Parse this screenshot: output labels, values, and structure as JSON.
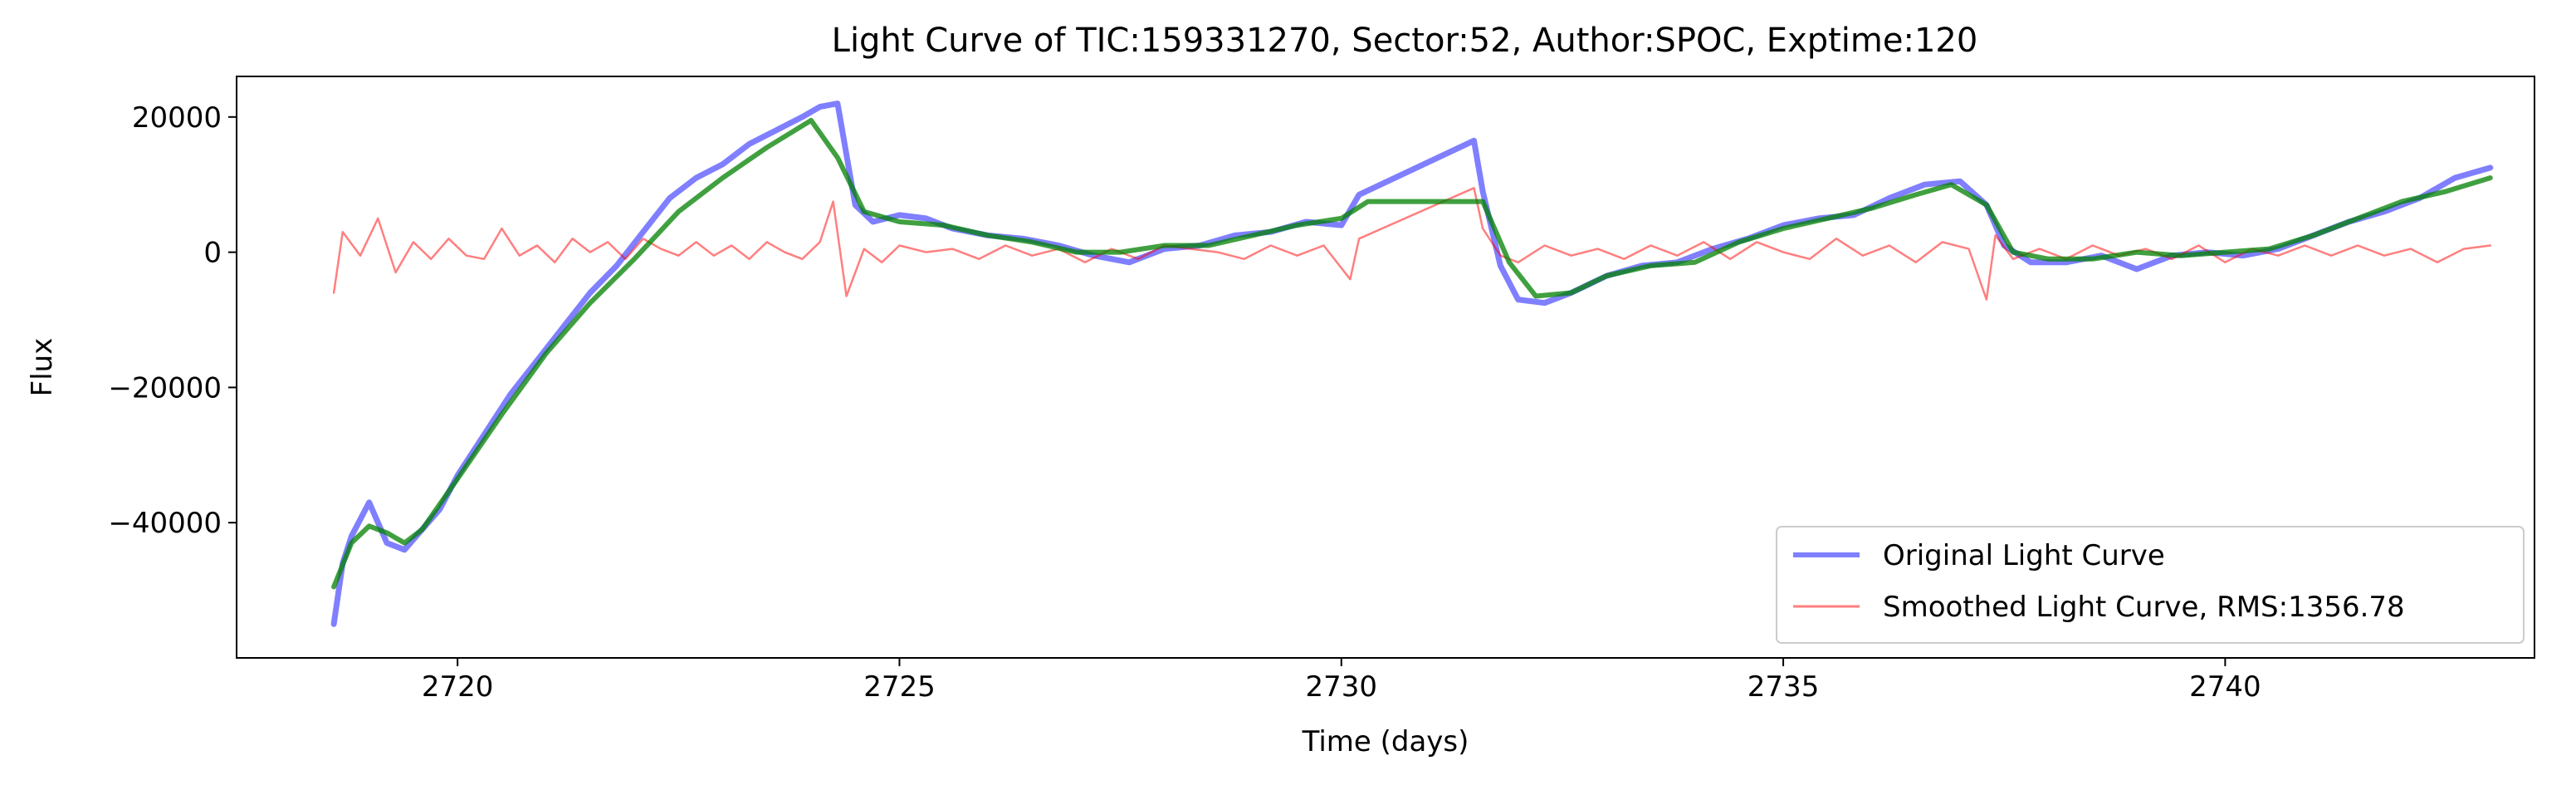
{
  "chart_data": {
    "type": "line",
    "title": "Light Curve of TIC:159331270, Sector:52, Author:SPOC, Exptime:120",
    "xlabel": "Time (days)",
    "ylabel": "Flux",
    "xlim": [
      2717.5,
      2743.5
    ],
    "ylim": [
      -60000,
      26000
    ],
    "xticks": [
      2720,
      2725,
      2730,
      2735,
      2740
    ],
    "xtick_labels": [
      "2720",
      "2725",
      "2730",
      "2735",
      "2740"
    ],
    "yticks": [
      20000,
      0,
      -20000,
      -40000
    ],
    "ytick_labels": [
      "20000",
      "0",
      "−20000",
      "−40000"
    ],
    "grid": false,
    "legend_position": "lower-right",
    "colors": {
      "original": "#0000ff",
      "smoothed": "#ff0000",
      "trend": "#008000"
    },
    "series": [
      {
        "name": "Original Light Curve",
        "x": [
          2718.6,
          2718.7,
          2718.8,
          2719.0,
          2719.2,
          2719.4,
          2719.6,
          2719.8,
          2720.0,
          2720.3,
          2720.6,
          2720.9,
          2721.2,
          2721.5,
          2721.8,
          2722.1,
          2722.4,
          2722.7,
          2723.0,
          2723.3,
          2723.6,
          2723.9,
          2724.1,
          2724.3,
          2724.5,
          2724.7,
          2725.0,
          2725.3,
          2725.6,
          2726.0,
          2726.4,
          2726.8,
          2727.2,
          2727.6,
          2728.0,
          2728.4,
          2728.8,
          2729.2,
          2729.6,
          2730.0,
          2730.2,
          2731.5,
          2731.6,
          2731.8,
          2732.0,
          2732.3,
          2732.6,
          2733.0,
          2733.4,
          2733.8,
          2734.2,
          2734.6,
          2735.0,
          2735.4,
          2735.8,
          2736.2,
          2736.6,
          2737.0,
          2737.3,
          2737.5,
          2737.8,
          2738.2,
          2738.6,
          2739.0,
          2739.4,
          2739.8,
          2740.2,
          2740.6,
          2741.0,
          2741.4,
          2741.8,
          2742.2,
          2742.6,
          2743.0
        ],
        "values": [
          -55000,
          -46000,
          -42000,
          -37000,
          -43000,
          -44000,
          -41000,
          -38000,
          -33000,
          -27000,
          -21000,
          -16000,
          -11000,
          -6000,
          -2000,
          3000,
          8000,
          11000,
          13000,
          16000,
          18000,
          20000,
          21500,
          22000,
          7000,
          4500,
          5500,
          5000,
          3500,
          2500,
          2000,
          1000,
          -500,
          -1500,
          500,
          1000,
          2500,
          3000,
          4500,
          4000,
          8500,
          16500,
          9000,
          -2000,
          -7000,
          -7500,
          -6000,
          -3500,
          -2000,
          -1500,
          500,
          2000,
          4000,
          5000,
          5500,
          8000,
          10000,
          10500,
          7000,
          1000,
          -1500,
          -1500,
          -500,
          -2500,
          -500,
          0,
          -500,
          500,
          2500,
          4500,
          6000,
          8000,
          11000,
          12500
        ]
      },
      {
        "name": "Smoothed Light Curve, RMS:1356.78",
        "x": [
          2718.6,
          2718.7,
          2718.9,
          2719.1,
          2719.3,
          2719.5,
          2719.7,
          2719.9,
          2720.1,
          2720.3,
          2720.5,
          2720.7,
          2720.9,
          2721.1,
          2721.3,
          2721.5,
          2721.7,
          2721.9,
          2722.1,
          2722.3,
          2722.5,
          2722.7,
          2722.9,
          2723.1,
          2723.3,
          2723.5,
          2723.7,
          2723.9,
          2724.1,
          2724.25,
          2724.4,
          2724.6,
          2724.8,
          2725.0,
          2725.3,
          2725.6,
          2725.9,
          2726.2,
          2726.5,
          2726.8,
          2727.1,
          2727.4,
          2727.7,
          2728.0,
          2728.3,
          2728.6,
          2728.9,
          2729.2,
          2729.5,
          2729.8,
          2730.1,
          2730.2,
          2731.5,
          2731.6,
          2731.8,
          2732.0,
          2732.3,
          2732.6,
          2732.9,
          2733.2,
          2733.5,
          2733.8,
          2734.1,
          2734.4,
          2734.7,
          2735.0,
          2735.3,
          2735.6,
          2735.9,
          2736.2,
          2736.5,
          2736.8,
          2737.1,
          2737.3,
          2737.4,
          2737.6,
          2737.9,
          2738.2,
          2738.5,
          2738.8,
          2739.1,
          2739.4,
          2739.7,
          2740.0,
          2740.3,
          2740.6,
          2740.9,
          2741.2,
          2741.5,
          2741.8,
          2742.1,
          2742.4,
          2742.7,
          2743.0
        ],
        "values": [
          -6000,
          3000,
          -500,
          5000,
          -3000,
          1500,
          -1000,
          2000,
          -500,
          -1000,
          3500,
          -500,
          1000,
          -1500,
          2000,
          0,
          1500,
          -1000,
          2000,
          500,
          -500,
          1500,
          -500,
          1000,
          -1000,
          1500,
          0,
          -1000,
          1500,
          7500,
          -6500,
          500,
          -1500,
          1000,
          0,
          500,
          -1000,
          1000,
          -500,
          500,
          -1500,
          500,
          -1000,
          1000,
          500,
          0,
          -1000,
          1000,
          -500,
          1000,
          -4000,
          2000,
          9500,
          3500,
          -500,
          -1500,
          1000,
          -500,
          500,
          -1000,
          1000,
          -500,
          1500,
          -1000,
          1500,
          0,
          -1000,
          2000,
          -500,
          1000,
          -1500,
          1500,
          500,
          -7000,
          2500,
          -1000,
          500,
          -1000,
          1000,
          -500,
          500,
          -1000,
          1000,
          -1500,
          500,
          -500,
          1000,
          -500,
          1000,
          -500,
          500,
          -1500,
          500,
          1000
        ]
      },
      {
        "name": "",
        "x": [
          2718.6,
          2718.8,
          2719.0,
          2719.2,
          2719.4,
          2719.6,
          2720.0,
          2720.5,
          2721.0,
          2721.5,
          2722.0,
          2722.5,
          2723.0,
          2723.5,
          2724.0,
          2724.3,
          2724.6,
          2725.0,
          2725.5,
          2726.0,
          2726.5,
          2727.0,
          2727.5,
          2728.0,
          2728.5,
          2729.0,
          2729.5,
          2730.0,
          2730.3,
          2731.0,
          2731.6,
          2731.9,
          2732.2,
          2732.6,
          2733.0,
          2733.5,
          2734.0,
          2734.5,
          2735.0,
          2735.5,
          2736.0,
          2736.5,
          2736.9,
          2737.3,
          2737.6,
          2738.0,
          2738.5,
          2739.0,
          2739.5,
          2740.0,
          2740.5,
          2741.0,
          2741.5,
          2742.0,
          2742.5,
          2743.0
        ],
        "values": [
          -49500,
          -43000,
          -40500,
          -41500,
          -43000,
          -41000,
          -33500,
          -24000,
          -15000,
          -7500,
          -1000,
          6000,
          11000,
          15500,
          19500,
          14000,
          6000,
          4500,
          4000,
          2500,
          1500,
          0,
          0,
          1000,
          1000,
          2500,
          4000,
          5000,
          7500,
          7500,
          7500,
          -1500,
          -6500,
          -6000,
          -3500,
          -2000,
          -1500,
          1500,
          3500,
          5000,
          6500,
          8500,
          10000,
          7000,
          0,
          -1000,
          -1000,
          0,
          -500,
          0,
          500,
          2500,
          5000,
          7500,
          9000,
          11000
        ]
      }
    ]
  }
}
